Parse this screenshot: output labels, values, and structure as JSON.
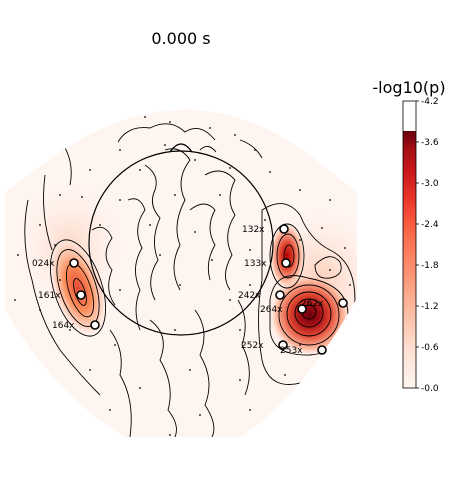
{
  "chart_data": {
    "type": "heatmap",
    "title": "0.000 s",
    "colorbar": {
      "label": "-log10(p)",
      "ticks": [
        "-4.2",
        "-3.6",
        "-3.0",
        "-2.4",
        "-1.8",
        "-1.2",
        "-0.6",
        "-0.0"
      ],
      "range": [
        0,
        4.2
      ],
      "colormap": "Reds",
      "display_max": 3.6
    },
    "labeled_sensors": [
      {
        "name": "024x",
        "side": "left"
      },
      {
        "name": "161x",
        "side": "left"
      },
      {
        "name": "164x",
        "side": "left"
      },
      {
        "name": "132x",
        "side": "right"
      },
      {
        "name": "133x",
        "side": "right"
      },
      {
        "name": "242x",
        "side": "right"
      },
      {
        "name": "264x",
        "side": "right"
      },
      {
        "name": "262x",
        "side": "right"
      },
      {
        "name": "252x",
        "side": "right"
      },
      {
        "name": "253x",
        "side": "right"
      }
    ],
    "hotspots": [
      {
        "region": "left-temporal",
        "peak": 2.4
      },
      {
        "region": "right-temporal-upper",
        "peak": 3.0
      },
      {
        "region": "right-temporal-lower",
        "peak": 3.6
      }
    ]
  },
  "colors": {
    "background": "#ffffff",
    "low": "#fff5f0",
    "mid": "#fb6a4a",
    "high": "#67000d"
  }
}
